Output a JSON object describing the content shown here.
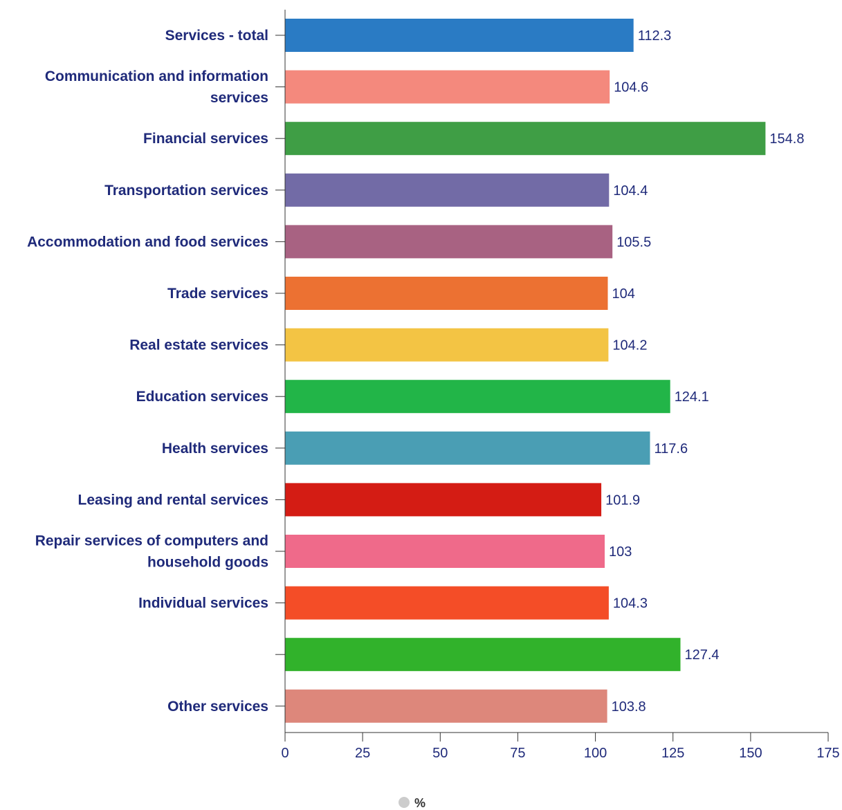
{
  "chart_data": {
    "type": "bar",
    "orientation": "horizontal",
    "categories": [
      "Services - total",
      "Communication and information services",
      "Financial services",
      "Transportation services",
      "Accommodation and food services",
      "Trade services",
      "Real estate services",
      "Education services",
      "Health services",
      "Leasing and rental services",
      "Repair services of computers and household goods",
      "Individual services",
      "",
      "Other services"
    ],
    "series": [
      {
        "name": "%",
        "values": [
          112.3,
          104.6,
          154.8,
          104.4,
          105.5,
          104,
          104.2,
          124.1,
          117.6,
          101.9,
          103,
          104.3,
          127.4,
          103.8
        ]
      }
    ],
    "value_labels": [
      "112.3",
      "104.6",
      "154.8",
      "104.4",
      "105.5",
      "104",
      "104.2",
      "124.1",
      "117.6",
      "101.9",
      "103",
      "104.3",
      "127.4",
      "103.8"
    ],
    "colors": [
      "#2a7bc4",
      "#f4897d",
      "#3f9e45",
      "#726ba6",
      "#a86282",
      "#ec7132",
      "#f3c444",
      "#22b548",
      "#4a9eb4",
      "#d41c14",
      "#ef6a8a",
      "#f44d27",
      "#31b22b",
      "#dd877b"
    ],
    "xlim": [
      0,
      175
    ],
    "xticks": [
      0,
      25,
      50,
      75,
      100,
      125,
      150,
      175
    ],
    "xtick_labels": [
      "0",
      "25",
      "50",
      "75",
      "100",
      "125",
      "150",
      "175"
    ],
    "grid": false,
    "legend": {
      "position": "bottom-center",
      "marker_color": "#cccccc",
      "entries": [
        "%"
      ]
    }
  }
}
